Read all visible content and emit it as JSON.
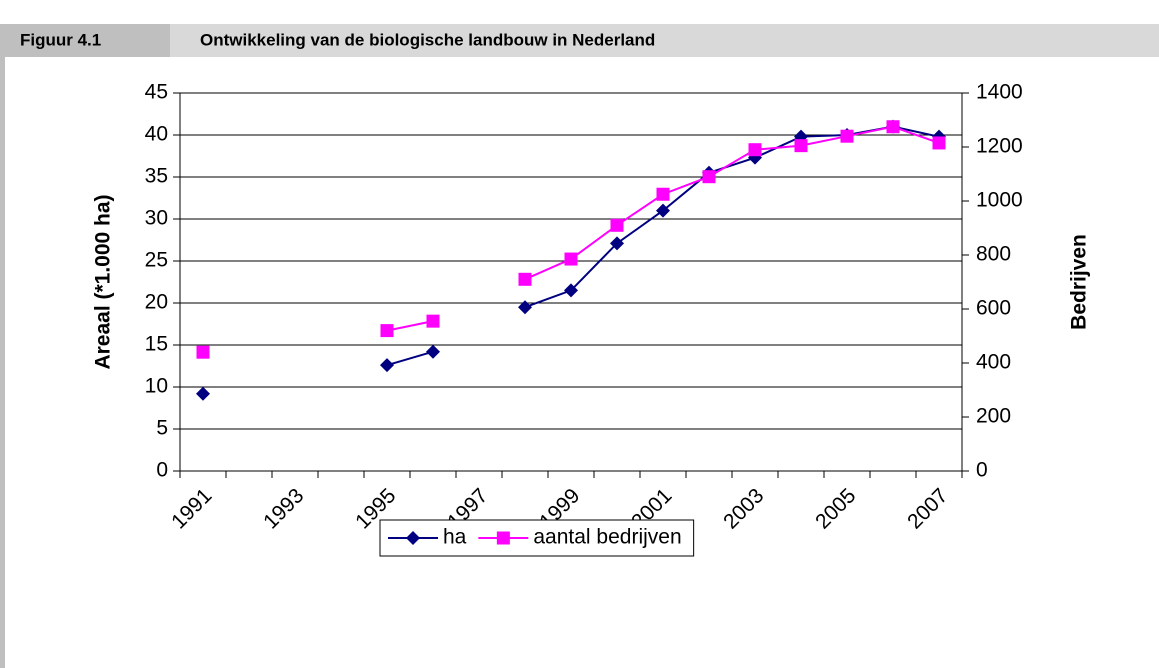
{
  "chart_data": {
    "type": "line",
    "figure_label": "Figuur 4.1",
    "title": "Ontwikkeling van de biologische landbouw in Nederland",
    "y_label": "Areaal (*1.000 ha)",
    "y2_label": "Bedrijven",
    "categories": [
      "1991",
      null,
      "1993",
      null,
      "1995",
      null,
      "1997",
      null,
      "1999",
      null,
      "2001",
      null,
      "2003",
      null,
      "2005",
      null,
      "2007"
    ],
    "series": [
      {
        "name": "ha",
        "color": "#000080",
        "marker": "diamond",
        "values": [
          9.2,
          null,
          null,
          null,
          12.6,
          14.2,
          null,
          19.5,
          21.5,
          27.1,
          31.0,
          35.5,
          37.3,
          39.8,
          40.0,
          41.0,
          39.8
        ]
      },
      {
        "name": "aantal bedrijven",
        "color": "#ff00ff",
        "marker": "square",
        "axis": "y2",
        "values": [
          440,
          null,
          null,
          null,
          520,
          555,
          null,
          710,
          785,
          910,
          1025,
          1090,
          1190,
          1205,
          1240,
          1275,
          1215
        ]
      }
    ],
    "ylim": [
      0,
      45
    ],
    "yticks": [
      0,
      5,
      10,
      15,
      20,
      25,
      30,
      35,
      40,
      45
    ],
    "y2lim": [
      0,
      1400
    ],
    "y2ticks": [
      0,
      200,
      400,
      600,
      800,
      1000,
      1200,
      1400
    ],
    "grid": true,
    "legend": "bottom"
  }
}
